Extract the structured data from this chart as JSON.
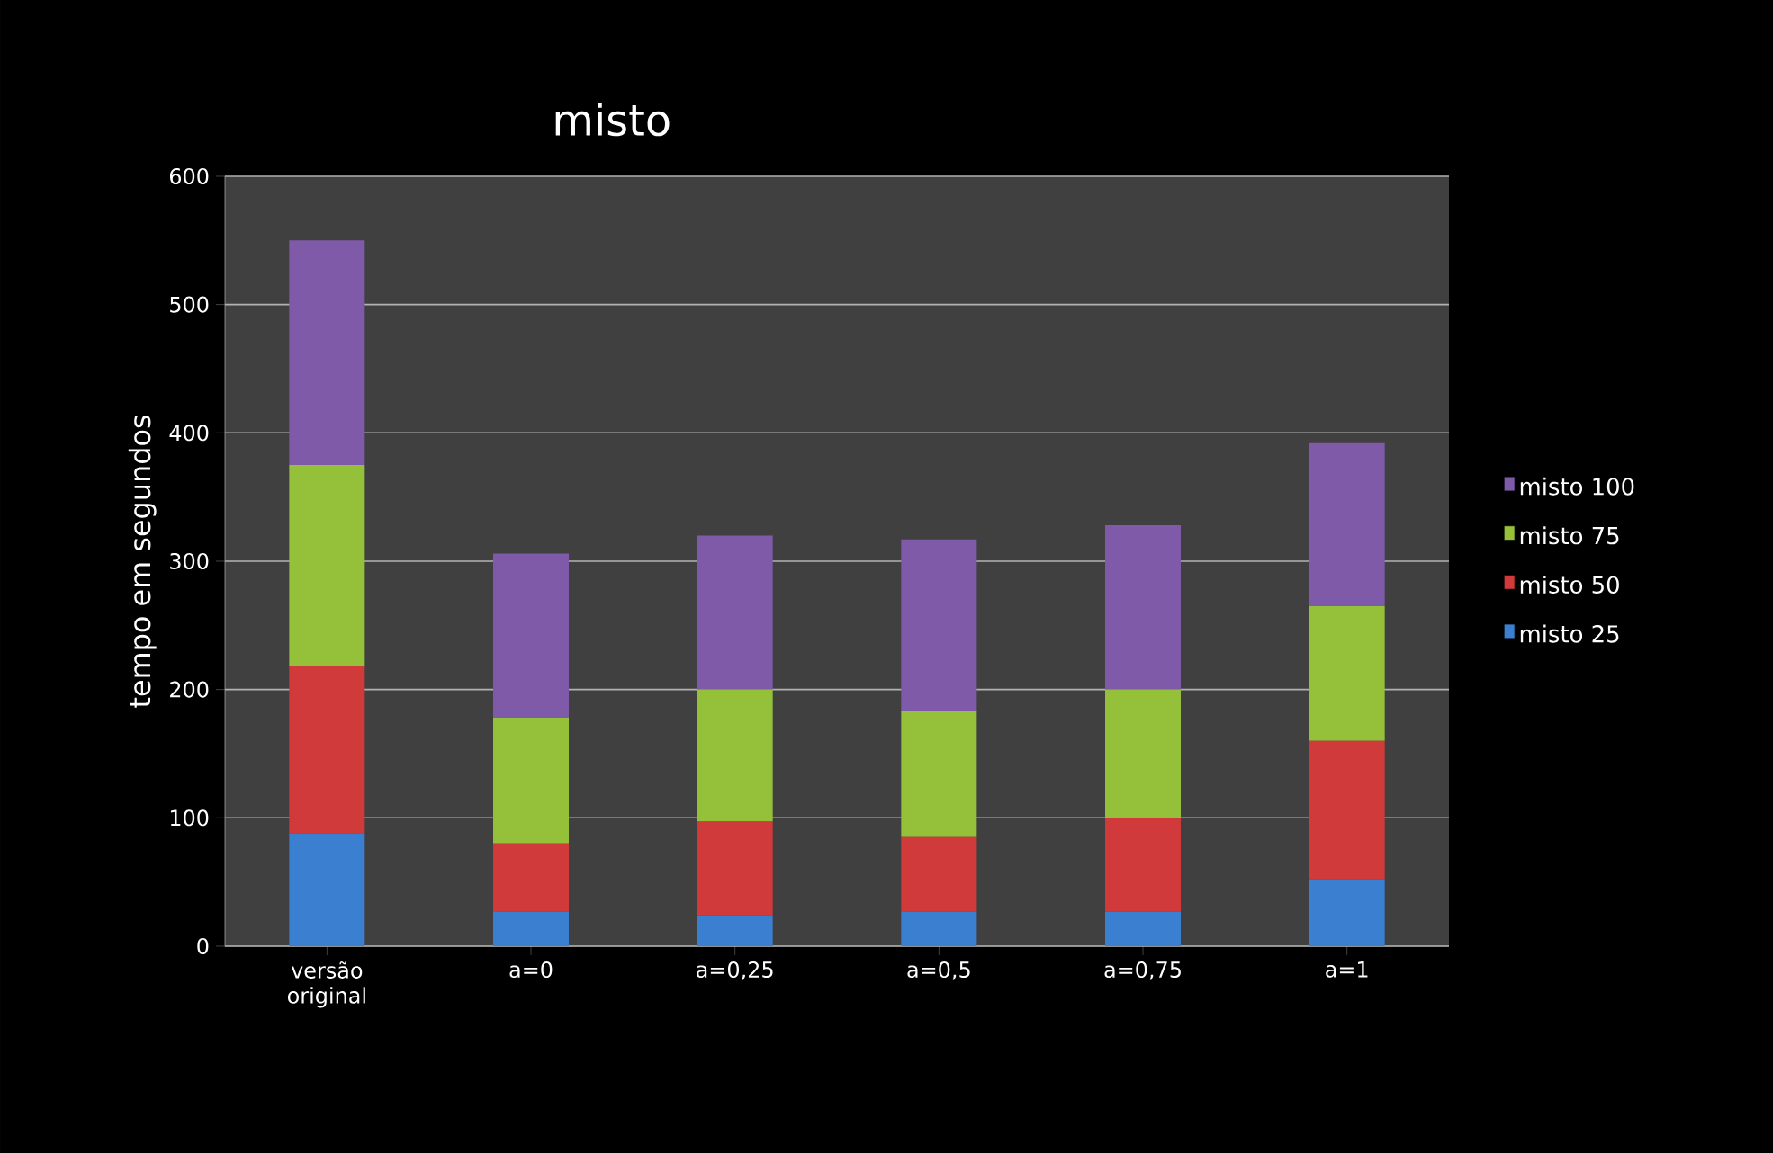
{
  "chart_data": {
    "type": "bar",
    "title": "misto",
    "ylabel": "tempo em segundos",
    "categories": [
      "versão original",
      "a=0",
      "a=0,25",
      "a=0,5",
      "a=0,75",
      "a=1"
    ],
    "stacked": true,
    "series": [
      {
        "name": "misto 25",
        "color": "#3a7fd0",
        "values": [
          88,
          27,
          24,
          27,
          27,
          52
        ]
      },
      {
        "name": "misto 50",
        "color": "#d03a3a",
        "values": [
          130,
          53,
          73,
          58,
          73,
          108
        ]
      },
      {
        "name": "misto 75",
        "color": "#94c03a",
        "values": [
          157,
          98,
          103,
          98,
          100,
          105
        ]
      },
      {
        "name": "misto 100",
        "color": "#7e5aa8",
        "values": [
          175,
          128,
          120,
          134,
          128,
          127
        ]
      }
    ],
    "ylim": [
      0,
      600
    ],
    "yticks": [
      0,
      100,
      200,
      300,
      400,
      500,
      600
    ],
    "grid": "y",
    "legend": "right"
  }
}
